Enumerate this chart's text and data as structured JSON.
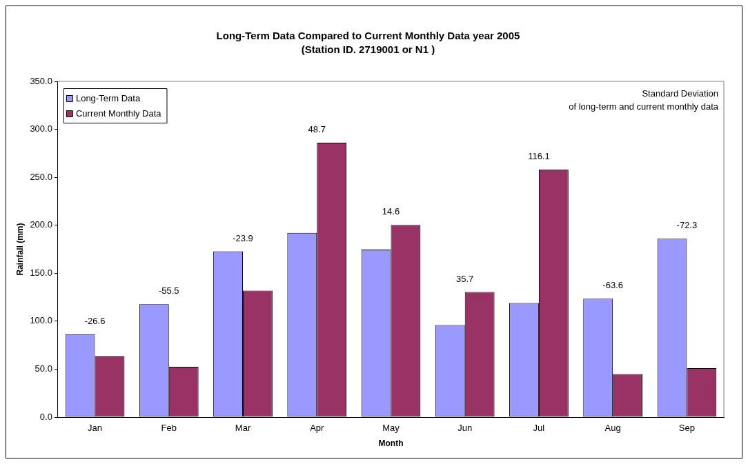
{
  "chart_data": {
    "type": "bar",
    "title": "Long-Term Data Compared to Current Monthly Data year 2005",
    "subtitle": "(Station ID. 2719001 or N1 )",
    "xlabel": "Month",
    "ylabel": "Rainfall (mm)",
    "categories": [
      "Jan",
      "Feb",
      "Mar",
      "Apr",
      "May",
      "Jun",
      "Jul",
      "Aug",
      "Sep"
    ],
    "series": [
      {
        "name": "Long-Term Data",
        "color": "#9999ff",
        "values": [
          86.5,
          117.7,
          172.9,
          192.0,
          174.6,
          96.0,
          119.0,
          123.4,
          185.9
        ]
      },
      {
        "name": "Current Monthly Data",
        "color": "#993366",
        "values": [
          63.3,
          52.5,
          131.9,
          286.0,
          200.3,
          130.4,
          258.2,
          44.9,
          51.0
        ]
      }
    ],
    "ylim": [
      0,
      350
    ],
    "yticks": [
      {
        "value": 0,
        "label": "0.0"
      },
      {
        "value": 50,
        "label": "50.0"
      },
      {
        "value": 100,
        "label": "100.0"
      },
      {
        "value": 150,
        "label": "150.0"
      },
      {
        "value": 200,
        "label": "200.0"
      },
      {
        "value": 250,
        "label": "250.0"
      },
      {
        "value": 300,
        "label": "300.0"
      },
      {
        "value": 350,
        "label": "350.0"
      }
    ],
    "grid": false,
    "legend": "top left",
    "annotations": [
      "-26.6",
      "-55.5",
      "-23.9",
      "48.7",
      "14.6",
      "35.7",
      "116.1",
      "-63.6",
      "-72.3",
      "Standard Deviation\nof long-term and current monthly data"
    ]
  }
}
